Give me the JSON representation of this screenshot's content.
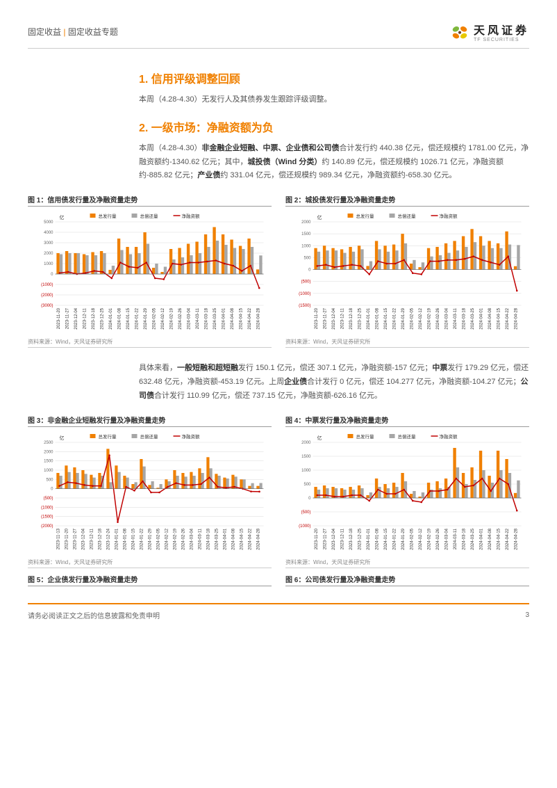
{
  "header": {
    "category": "固定收益",
    "sep": " | ",
    "topic": "固定收益专题",
    "logo_cn": "天风证券",
    "logo_en": "TF SECURITIES"
  },
  "section1": {
    "title": "1. 信用评级调整回顾",
    "body": "本周（4.28-4.30）无发行人及其债券发生跟踪评级调整。"
  },
  "section2": {
    "title": "2. 一级市场：净融资额为负",
    "body_parts": [
      "本周（4.28-4.30）",
      "非金融企业短融、中票、企业债和公司债",
      "合计发行约 440.38 亿元，偿还规模约 1781.00 亿元，净融资额约-1340.62 亿元；其中，",
      "城投债（Wind 分类）",
      "约 140.89 亿元，偿还规模约 1026.71 亿元，净融资额约-885.82 亿元；",
      "产业债",
      "约 331.04 亿元，偿还规模约 989.34 亿元，净融资额约-658.30 亿元。"
    ],
    "body2_parts": [
      "具体来看，",
      "一般短融和超短融",
      "发行 150.1 亿元，偿还 307.1 亿元，净融资额-157 亿元；",
      "中票",
      "发行 179.29 亿元，偿还 632.48 亿元，净融资额-453.19 亿元。上周",
      "企业债",
      "合计发行 0 亿元，偿还 104.277 亿元，净融资额-104.27 亿元；",
      "公司债",
      "合计发行 110.99 亿元，偿还 737.15 亿元，净融资额-626.16 亿元。"
    ]
  },
  "chart_common": {
    "ylabel": "亿",
    "legend": [
      "总发行量",
      "总偿还量",
      "净融资额"
    ],
    "legend_colors": [
      "#f08000",
      "#a6a6a6",
      "#c00000"
    ],
    "source": "资料来源：Wind，天风证券研究所",
    "xlabels": [
      "2023-11-20",
      "2023-11-27",
      "2023-12-04",
      "2023-12-11",
      "2023-12-18",
      "2023-12-25",
      "2024-01-01",
      "2024-01-08",
      "2024-01-15",
      "2024-01-22",
      "2024-01-29",
      "2024-02-05",
      "2024-02-12",
      "2024-02-19",
      "2024-02-26",
      "2024-03-04",
      "2024-03-11",
      "2024-03-18",
      "2024-03-25",
      "2024-04-01",
      "2024-04-08",
      "2024-04-15",
      "2024-04-22",
      "2024-04-28"
    ],
    "xlabels_alt": [
      "2023-11-13",
      "2023-11-20",
      "2023-11-27",
      "2023-12-04",
      "2023-12-11",
      "2023-12-18",
      "2023-12-24",
      "2024-01-01",
      "2024-01-08",
      "2024-01-15",
      "2024-01-22",
      "2024-01-29",
      "2024-02-05",
      "2024-02-12",
      "2024-02-19",
      "2024-02-26",
      "2024-03-04",
      "2024-03-11",
      "2024-03-18",
      "2024-03-25",
      "2024-04-01",
      "2024-04-08",
      "2024-04-15",
      "2024-04-22",
      "2024-04-28"
    ],
    "bar_width": 0.35,
    "line_width": 1.5,
    "grid_color": "#d9d9d9",
    "axis_color": "#666",
    "tick_fontsize": 6,
    "neg_label_color": "#c00000"
  },
  "chart1": {
    "caption": "图 1：信用债发行量及净融资量走势",
    "ymin": -3000,
    "ymax": 5000,
    "ystep": 1000,
    "issue": [
      2000,
      2200,
      2000,
      1900,
      2100,
      2200,
      400,
      3400,
      2600,
      2600,
      4000,
      600,
      200,
      2400,
      2500,
      2900,
      3100,
      3800,
      4500,
      3800,
      3300,
      2700,
      3400,
      440
    ],
    "repay": [
      1900,
      2000,
      2000,
      1800,
      1800,
      2000,
      800,
      2300,
      1900,
      2000,
      2900,
      1000,
      700,
      1400,
      1600,
      1800,
      2000,
      2600,
      3200,
      2800,
      2500,
      2400,
      2600,
      1781
    ],
    "net": [
      100,
      200,
      0,
      100,
      300,
      200,
      -400,
      1100,
      700,
      600,
      1100,
      -400,
      -500,
      1000,
      900,
      1100,
      1100,
      1200,
      1300,
      1000,
      800,
      300,
      800,
      -1341
    ]
  },
  "chart2": {
    "caption": "图 2：城投债发行量及净融资量走势",
    "ymin": -1500,
    "ymax": 2000,
    "ystep": 500,
    "issue": [
      900,
      1000,
      900,
      850,
      950,
      1000,
      150,
      1200,
      1000,
      1050,
      1500,
      250,
      100,
      900,
      950,
      1100,
      1200,
      1400,
      1700,
      1400,
      1200,
      1100,
      1600,
      141
    ],
    "repay": [
      750,
      800,
      800,
      700,
      750,
      850,
      350,
      850,
      750,
      800,
      1100,
      400,
      300,
      550,
      600,
      700,
      800,
      950,
      1150,
      1000,
      900,
      900,
      1050,
      1027
    ],
    "net": [
      150,
      200,
      100,
      150,
      200,
      150,
      -200,
      350,
      250,
      250,
      400,
      -150,
      -200,
      350,
      350,
      400,
      400,
      450,
      550,
      400,
      300,
      200,
      550,
      -886
    ]
  },
  "chart3": {
    "caption": "图 3：非金融企业短融发行量及净融资量走势",
    "ymin": -2000,
    "ymax": 2500,
    "ystep": 500,
    "issue": [
      850,
      1250,
      1150,
      1000,
      750,
      850,
      2150,
      1250,
      700,
      250,
      1600,
      200,
      50,
      500,
      1000,
      850,
      900,
      1100,
      1700,
      800,
      600,
      750,
      500,
      150,
      150
    ],
    "repay": [
      700,
      900,
      850,
      800,
      600,
      700,
      350,
      900,
      600,
      350,
      1200,
      400,
      250,
      400,
      700,
      650,
      700,
      850,
      1100,
      700,
      550,
      650,
      500,
      300,
      307
    ],
    "net": [
      150,
      350,
      300,
      200,
      150,
      150,
      1800,
      -1800,
      100,
      -100,
      400,
      -200,
      -200,
      100,
      300,
      200,
      200,
      250,
      600,
      100,
      50,
      100,
      0,
      -150,
      -157
    ]
  },
  "chart4": {
    "caption": "图 4：中票发行量及净融资量走势",
    "ymin": -1000,
    "ymax": 2000,
    "ystep": 500,
    "issue": [
      400,
      450,
      400,
      350,
      400,
      450,
      100,
      700,
      500,
      550,
      900,
      150,
      50,
      550,
      600,
      700,
      1800,
      900,
      1100,
      1700,
      800,
      1700,
      1400,
      179
    ],
    "repay": [
      300,
      350,
      350,
      300,
      300,
      350,
      200,
      400,
      350,
      400,
      600,
      250,
      200,
      300,
      350,
      400,
      1100,
      500,
      650,
      1000,
      550,
      1000,
      900,
      632
    ],
    "net": [
      100,
      100,
      50,
      50,
      100,
      100,
      -100,
      300,
      150,
      150,
      300,
      -100,
      -150,
      250,
      250,
      300,
      700,
      400,
      450,
      700,
      250,
      700,
      500,
      -453
    ]
  },
  "chart5": {
    "caption": "图 5：企业债发行量及净融资量走势"
  },
  "chart6": {
    "caption": "图 6：公司债发行量及净融资量走势"
  },
  "footer": {
    "disclaimer": "请务必阅读正文之后的信息披露和免责申明",
    "page": "3"
  }
}
